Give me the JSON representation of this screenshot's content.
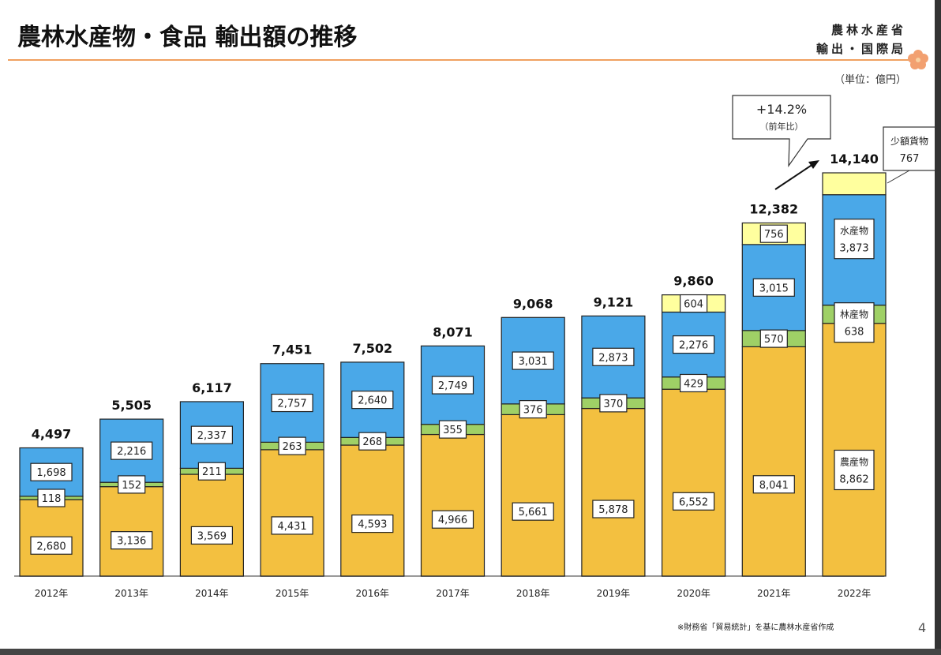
{
  "header": {
    "title": "農林水産物・食品 輸出額の推移",
    "ministry_line1": "農林水産省",
    "ministry_line2": "輸出・国際局",
    "unit": "（単位：億円）"
  },
  "footer": {
    "source": "※財務省「貿易統計」を基に農林水産省作成",
    "page_number": "4"
  },
  "callouts": {
    "growth": "+14.2%",
    "growth_note": "（前年比）",
    "small_cargo_label": "少額貨物",
    "small_cargo_value": "767",
    "fishery_label": "水産物",
    "forestry_label": "林産物",
    "agri_label": "農産物"
  },
  "colors": {
    "agriculture": "#f3c040",
    "forestry": "#9fd066",
    "fishery": "#4aa8e8",
    "small_cargo": "#ffff9e",
    "rule": "#f0a060"
  },
  "chart_data": {
    "type": "bar",
    "stacked": true,
    "title": "農林水産物・食品 輸出額の推移",
    "xlabel": "",
    "ylabel": "億円",
    "ylim": [
      0,
      14140
    ],
    "grid": false,
    "categories": [
      "2012年",
      "2013年",
      "2014年",
      "2015年",
      "2016年",
      "2017年",
      "2018年",
      "2019年",
      "2020年",
      "2021年",
      "2022年"
    ],
    "series": [
      {
        "name": "農産物",
        "values": [
          2680,
          3136,
          3569,
          4431,
          4593,
          4966,
          5661,
          5878,
          6552,
          8041,
          8862
        ]
      },
      {
        "name": "林産物",
        "values": [
          118,
          152,
          211,
          263,
          268,
          355,
          376,
          370,
          429,
          570,
          638
        ]
      },
      {
        "name": "水産物",
        "values": [
          1698,
          2216,
          2337,
          2757,
          2640,
          2749,
          3031,
          2873,
          2276,
          3015,
          3873
        ]
      },
      {
        "name": "少額貨物",
        "values": [
          0,
          0,
          0,
          0,
          0,
          0,
          0,
          0,
          604,
          756,
          767
        ]
      }
    ],
    "totals": [
      "4,497",
      "5,505",
      "6,117",
      "7,451",
      "7,502",
      "8,071",
      "9,068",
      "9,121",
      "9,860",
      "12,382",
      "14,140"
    ],
    "annotations": [
      "+14.2%（前年比）"
    ]
  }
}
